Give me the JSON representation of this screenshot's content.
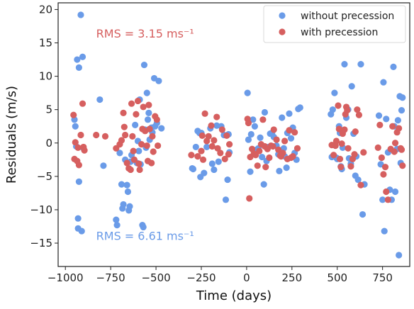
{
  "chart_data": {
    "type": "scatter",
    "xlabel": "Time (days)",
    "ylabel": "Residuals (m/s)",
    "xlim": [
      -1040,
      900
    ],
    "ylim": [
      -18.5,
      21
    ],
    "xticks": [
      -1000,
      -750,
      -500,
      -250,
      0,
      250,
      500,
      750
    ],
    "xtick_labels": [
      "−1000",
      "−750",
      "−500",
      "−250",
      "0",
      "250",
      "500",
      "750"
    ],
    "yticks": [
      -15,
      -10,
      -5,
      0,
      5,
      10,
      15,
      20
    ],
    "ytick_labels": [
      "−15",
      "−10",
      "−5",
      "0",
      "5",
      "10",
      "15",
      "20"
    ],
    "grid": false,
    "legend_position": "top-right",
    "annotations": [
      {
        "text": "RMS = 3.15 ms⁻¹",
        "x": -560,
        "y": 15.8,
        "color": "#d65f5f"
      },
      {
        "text": "RMS = 6.61 ms⁻¹",
        "x": -560,
        "y": -14.5,
        "color": "#6a9be8"
      }
    ],
    "series": [
      {
        "name": "without precession",
        "color": "#6a9be8",
        "points": [
          [
            -950,
            3.5
          ],
          [
            -945,
            2.5
          ],
          [
            -940,
            -0.5
          ],
          [
            -935,
            12.5
          ],
          [
            -930,
            -11.3
          ],
          [
            -930,
            -12.8
          ],
          [
            -925,
            11.3
          ],
          [
            -925,
            -5.8
          ],
          [
            -915,
            19.2
          ],
          [
            -910,
            -13.2
          ],
          [
            -905,
            12.9
          ],
          [
            -900,
            -0.8
          ],
          [
            -810,
            6.5
          ],
          [
            -790,
            -3.4
          ],
          [
            -720,
            -11.5
          ],
          [
            -715,
            -12.3
          ],
          [
            -700,
            -1.5
          ],
          [
            -690,
            -6.2
          ],
          [
            -685,
            -9.8
          ],
          [
            -680,
            -9.2
          ],
          [
            -670,
            -2.5
          ],
          [
            -660,
            -6.3
          ],
          [
            -655,
            -7.3
          ],
          [
            -650,
            -10.1
          ],
          [
            -645,
            -9.5
          ],
          [
            -640,
            -2.8
          ],
          [
            -635,
            -1.8
          ],
          [
            -615,
            2.7
          ],
          [
            -605,
            -3.0
          ],
          [
            -600,
            0.3
          ],
          [
            -595,
            -1.2
          ],
          [
            -590,
            6.5
          ],
          [
            -585,
            -3.2
          ],
          [
            -575,
            -12.3
          ],
          [
            -570,
            -12.6
          ],
          [
            -565,
            11.7
          ],
          [
            -560,
            2.0
          ],
          [
            -555,
            -0.7
          ],
          [
            -550,
            7.5
          ],
          [
            -545,
            3.5
          ],
          [
            -540,
            4.5
          ],
          [
            -535,
            0.5
          ],
          [
            -525,
            2.3
          ],
          [
            -520,
            1.6
          ],
          [
            -510,
            9.7
          ],
          [
            -505,
            2.5
          ],
          [
            -495,
            3.0
          ],
          [
            -485,
            9.3
          ],
          [
            -470,
            2.2
          ],
          [
            -300,
            -3.8
          ],
          [
            -295,
            -3.9
          ],
          [
            -280,
            -0.6
          ],
          [
            -270,
            1.8
          ],
          [
            -260,
            1.5
          ],
          [
            -255,
            -5.1
          ],
          [
            -250,
            1.5
          ],
          [
            -235,
            -4.5
          ],
          [
            -220,
            -0.6
          ],
          [
            -200,
            2.2
          ],
          [
            -190,
            -3.1
          ],
          [
            -180,
            -4.0
          ],
          [
            -165,
            2.6
          ],
          [
            -155,
            -2.8
          ],
          [
            -140,
            2.5
          ],
          [
            -125,
            1.2
          ],
          [
            -115,
            -8.5
          ],
          [
            -105,
            -5.5
          ],
          [
            -100,
            1.3
          ],
          [
            -95,
            -1.4
          ],
          [
            5,
            7.5
          ],
          [
            10,
            0.5
          ],
          [
            20,
            -4.3
          ],
          [
            25,
            1.3
          ],
          [
            35,
            3.5
          ],
          [
            45,
            2.5
          ],
          [
            55,
            -1.0
          ],
          [
            65,
            -0.8
          ],
          [
            75,
            0.8
          ],
          [
            85,
            -2.1
          ],
          [
            95,
            -6.2
          ],
          [
            100,
            4.6
          ],
          [
            110,
            -2.7
          ],
          [
            120,
            -0.6
          ],
          [
            130,
            1.4
          ],
          [
            140,
            1.5
          ],
          [
            150,
            0.9
          ],
          [
            165,
            -0.4
          ],
          [
            175,
            -1.7
          ],
          [
            180,
            -4.2
          ],
          [
            195,
            3.8
          ],
          [
            205,
            -0.8
          ],
          [
            210,
            -2.0
          ],
          [
            220,
            -3.7
          ],
          [
            225,
            1.5
          ],
          [
            235,
            4.4
          ],
          [
            245,
            0.7
          ],
          [
            255,
            2.3
          ],
          [
            265,
            -1.5
          ],
          [
            275,
            -2.5
          ],
          [
            285,
            5.1
          ],
          [
            295,
            5.3
          ],
          [
            465,
            4.3
          ],
          [
            470,
            -2.1
          ],
          [
            475,
            5.0
          ],
          [
            485,
            7.5
          ],
          [
            490,
            -0.4
          ],
          [
            495,
            -2.2
          ],
          [
            500,
            -2.4
          ],
          [
            510,
            2.5
          ],
          [
            515,
            1.5
          ],
          [
            520,
            -3.5
          ],
          [
            525,
            -3.9
          ],
          [
            530,
            -0.7
          ],
          [
            540,
            11.8
          ],
          [
            550,
            3.8
          ],
          [
            560,
            5.0
          ],
          [
            565,
            -2.3
          ],
          [
            575,
            -3.1
          ],
          [
            580,
            8.5
          ],
          [
            590,
            1.4
          ],
          [
            600,
            -4.9
          ],
          [
            605,
            -2.0
          ],
          [
            615,
            -5.5
          ],
          [
            630,
            11.8
          ],
          [
            640,
            -10.7
          ],
          [
            650,
            -6.2
          ],
          [
            730,
            4.1
          ],
          [
            740,
            -3.2
          ],
          [
            750,
            -8.5
          ],
          [
            755,
            9.1
          ],
          [
            760,
            -13.2
          ],
          [
            770,
            3.6
          ],
          [
            780,
            -1.4
          ],
          [
            790,
            -7.0
          ],
          [
            800,
            -8.5
          ],
          [
            810,
            11.4
          ],
          [
            815,
            2.5
          ],
          [
            820,
            -7.3
          ],
          [
            830,
            -0.9
          ],
          [
            835,
            3.4
          ],
          [
            840,
            -16.8
          ],
          [
            845,
            7.0
          ],
          [
            850,
            -3.0
          ],
          [
            855,
            4.9
          ],
          [
            860,
            6.8
          ]
        ]
      },
      {
        "name": "with precession",
        "color": "#d65f5f",
        "points": [
          [
            -955,
            4.2
          ],
          [
            -950,
            -2.4
          ],
          [
            -945,
            0.1
          ],
          [
            -935,
            -2.7
          ],
          [
            -930,
            -0.7
          ],
          [
            -925,
            -3.3
          ],
          [
            -915,
            1.2
          ],
          [
            -905,
            5.9
          ],
          [
            -900,
            -0.6
          ],
          [
            -895,
            -1.1
          ],
          [
            -830,
            1.2
          ],
          [
            -780,
            1.0
          ],
          [
            -720,
            -0.8
          ],
          [
            -700,
            -0.2
          ],
          [
            -690,
            0.4
          ],
          [
            -680,
            4.5
          ],
          [
            -675,
            2.4
          ],
          [
            -670,
            1.2
          ],
          [
            -660,
            -3.0
          ],
          [
            -650,
            -3.8
          ],
          [
            -640,
            -4.0
          ],
          [
            -635,
            5.9
          ],
          [
            -630,
            1.0
          ],
          [
            -625,
            -1.2
          ],
          [
            -620,
            -2.5
          ],
          [
            -610,
            4.3
          ],
          [
            -600,
            6.3
          ],
          [
            -595,
            -3.1
          ],
          [
            -590,
            -4.0
          ],
          [
            -580,
            -0.2
          ],
          [
            -575,
            2.1
          ],
          [
            -570,
            5.4
          ],
          [
            -560,
            1.8
          ],
          [
            -550,
            -0.4
          ],
          [
            -545,
            -2.7
          ],
          [
            -540,
            5.7
          ],
          [
            -535,
            2.1
          ],
          [
            -525,
            -3.0
          ],
          [
            -520,
            1.0
          ],
          [
            -515,
            -1.3
          ],
          [
            -505,
            4.0
          ],
          [
            -495,
            3.5
          ],
          [
            -490,
            -0.4
          ],
          [
            -305,
            -1.8
          ],
          [
            -270,
            -2.0
          ],
          [
            -250,
            -1.2
          ],
          [
            -245,
            1.1
          ],
          [
            -240,
            -2.5
          ],
          [
            -230,
            4.4
          ],
          [
            -220,
            0.3
          ],
          [
            -210,
            1.0
          ],
          [
            -195,
            2.6
          ],
          [
            -190,
            -0.5
          ],
          [
            -180,
            0.4
          ],
          [
            -165,
            3.9
          ],
          [
            -160,
            -0.8
          ],
          [
            -145,
            -1.5
          ],
          [
            -135,
            2.0
          ],
          [
            -120,
            -2.4
          ],
          [
            -110,
            1.1
          ],
          [
            -100,
            -1.7
          ],
          [
            -95,
            -0.2
          ],
          [
            5,
            3.6
          ],
          [
            10,
            3.0
          ],
          [
            15,
            -8.3
          ],
          [
            20,
            -2.1
          ],
          [
            30,
            -0.9
          ],
          [
            40,
            -1.6
          ],
          [
            50,
            -1.8
          ],
          [
            60,
            -3.4
          ],
          [
            70,
            -1.2
          ],
          [
            80,
            -0.2
          ],
          [
            90,
            3.5
          ],
          [
            100,
            -0.5
          ],
          [
            105,
            -3.6
          ],
          [
            115,
            -0.9
          ],
          [
            125,
            -2.2
          ],
          [
            135,
            -0.4
          ],
          [
            145,
            -0.5
          ],
          [
            150,
            2.0
          ],
          [
            165,
            0.5
          ],
          [
            175,
            -1.0
          ],
          [
            185,
            -1.9
          ],
          [
            190,
            -2.0
          ],
          [
            200,
            -1.5
          ],
          [
            210,
            0.3
          ],
          [
            225,
            -2.4
          ],
          [
            235,
            1.9
          ],
          [
            245,
            -2.2
          ],
          [
            255,
            -2.0
          ],
          [
            265,
            1.6
          ],
          [
            280,
            -0.8
          ],
          [
            470,
            -0.3
          ],
          [
            480,
            -1.8
          ],
          [
            490,
            -0.4
          ],
          [
            495,
            0.3
          ],
          [
            505,
            5.6
          ],
          [
            510,
            2.1
          ],
          [
            515,
            -2.4
          ],
          [
            520,
            -3.6
          ],
          [
            525,
            -0.1
          ],
          [
            530,
            1.4
          ],
          [
            540,
            2.0
          ],
          [
            545,
            4.3
          ],
          [
            550,
            5.4
          ],
          [
            555,
            4.9
          ],
          [
            560,
            -0.8
          ],
          [
            575,
            -3.5
          ],
          [
            585,
            -2.4
          ],
          [
            595,
            -1.7
          ],
          [
            600,
            1.7
          ],
          [
            610,
            5.0
          ],
          [
            620,
            4.2
          ],
          [
            630,
            -6.3
          ],
          [
            645,
            -1.4
          ],
          [
            725,
            -0.7
          ],
          [
            735,
            2.7
          ],
          [
            745,
            -2.2
          ],
          [
            755,
            -4.7
          ],
          [
            765,
            -3.6
          ],
          [
            770,
            -7.3
          ],
          [
            780,
            -8.5
          ],
          [
            795,
            -0.9
          ],
          [
            805,
            2.5
          ],
          [
            815,
            -1.3
          ],
          [
            820,
            0.0
          ],
          [
            830,
            1.6
          ],
          [
            840,
            2.2
          ],
          [
            850,
            -0.8
          ],
          [
            855,
            -1.0
          ],
          [
            860,
            -3.4
          ]
        ]
      }
    ]
  }
}
